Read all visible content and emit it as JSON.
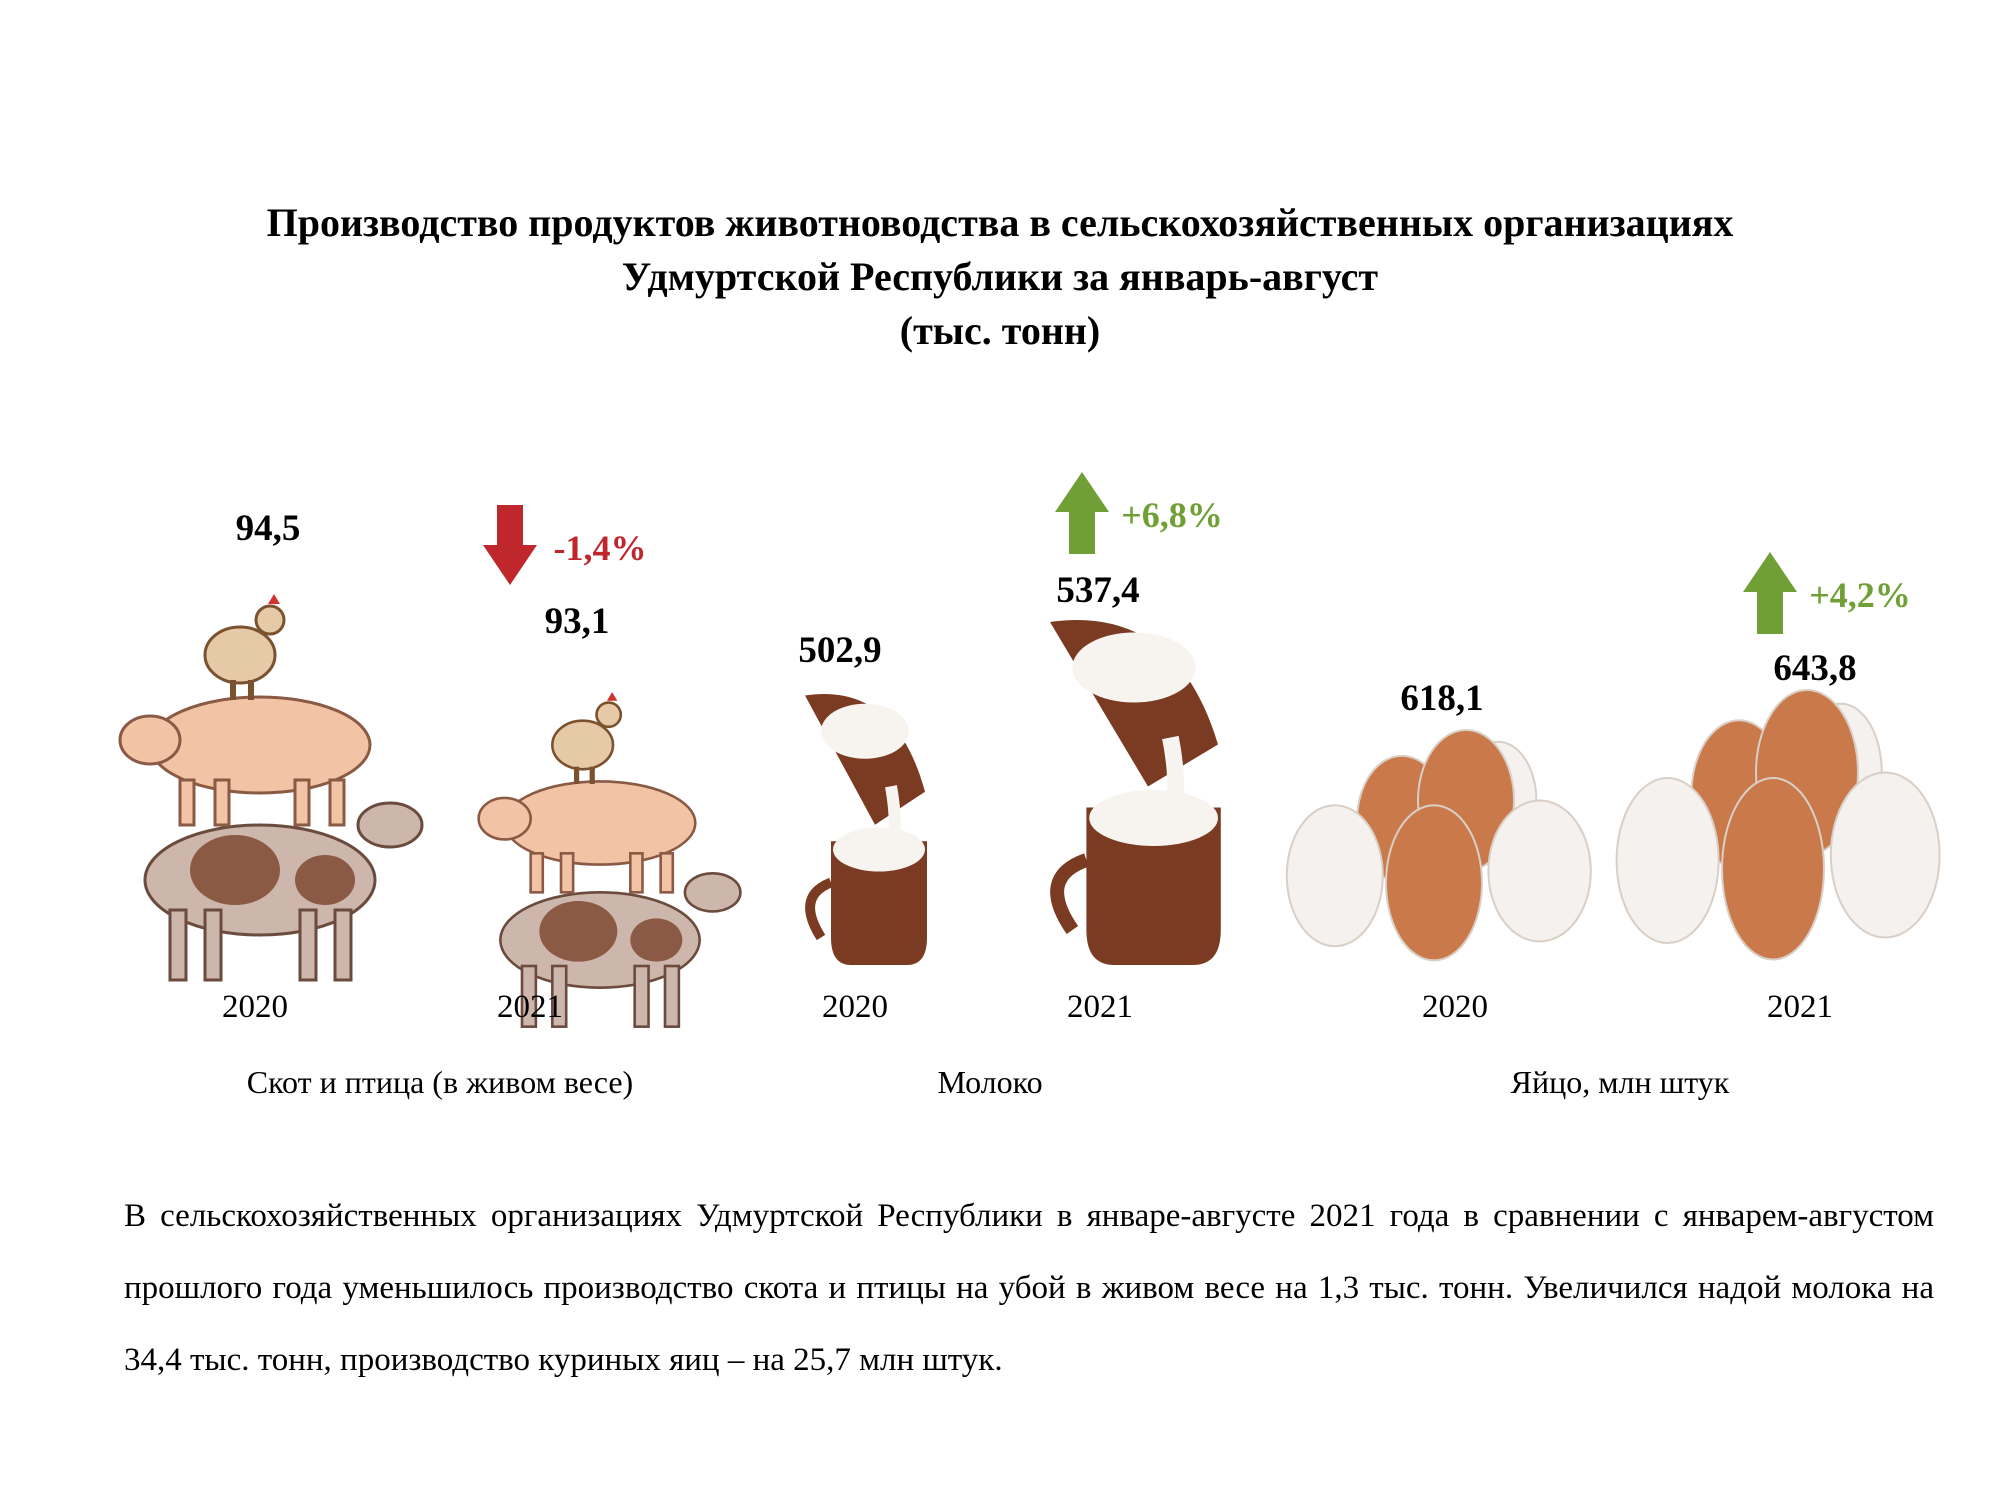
{
  "title": {
    "line1": "Производство продуктов животноводства в сельскохозяйственных организациях",
    "line2": "Удмуртской Республики за январь-август",
    "line3": "(тыс. тонн)"
  },
  "chart_data": {
    "type": "bar",
    "title": "Производство продуктов животноводства в сельскохозяйственных организациях Удмуртской Республики за январь-август",
    "unit": "(тыс. тонн)",
    "groups": [
      {
        "name": "Скот и птица (в живом весе)",
        "icon": "livestock-stack-icon",
        "x": [
          "2020",
          "2021"
        ],
        "values": [
          94.5,
          93.1
        ],
        "value_labels": [
          "94,5",
          "93,1"
        ],
        "change": "-1,4%",
        "change_direction": "down"
      },
      {
        "name": "Молоко",
        "icon": "milk-jug-icon",
        "x": [
          "2020",
          "2021"
        ],
        "values": [
          502.9,
          537.4
        ],
        "value_labels": [
          "502,9",
          "537,4"
        ],
        "change": "+6,8%",
        "change_direction": "up"
      },
      {
        "name": "Яйцо, млн штук",
        "icon": "eggs-icon",
        "x": [
          "2020",
          "2021"
        ],
        "values": [
          618.1,
          643.8
        ],
        "value_labels": [
          "618,1",
          "643,8"
        ],
        "change": "+4,2%",
        "change_direction": "up"
      }
    ],
    "colors": {
      "down": "#c0272d",
      "up": "#70a035",
      "pig": "#f2c3a5",
      "cow_spots": "#8a5a44",
      "milk_jug": "#7a3b22",
      "egg_brown": "#c9794a",
      "egg_white": "#f4f1ee"
    }
  },
  "paragraph": {
    "part1": "В сельскохозяйственных организациях Удмуртской Республики в январе-августе 2021 года в сравнении с январем-августом прошлого года уменьшилось производство скота и птицы на убой в живом весе на 1,3 тыс. тонн. Увеличился надой молока на 34,4 тыс. тонн, производство куриных яиц – на 25,7 млн штук."
  }
}
